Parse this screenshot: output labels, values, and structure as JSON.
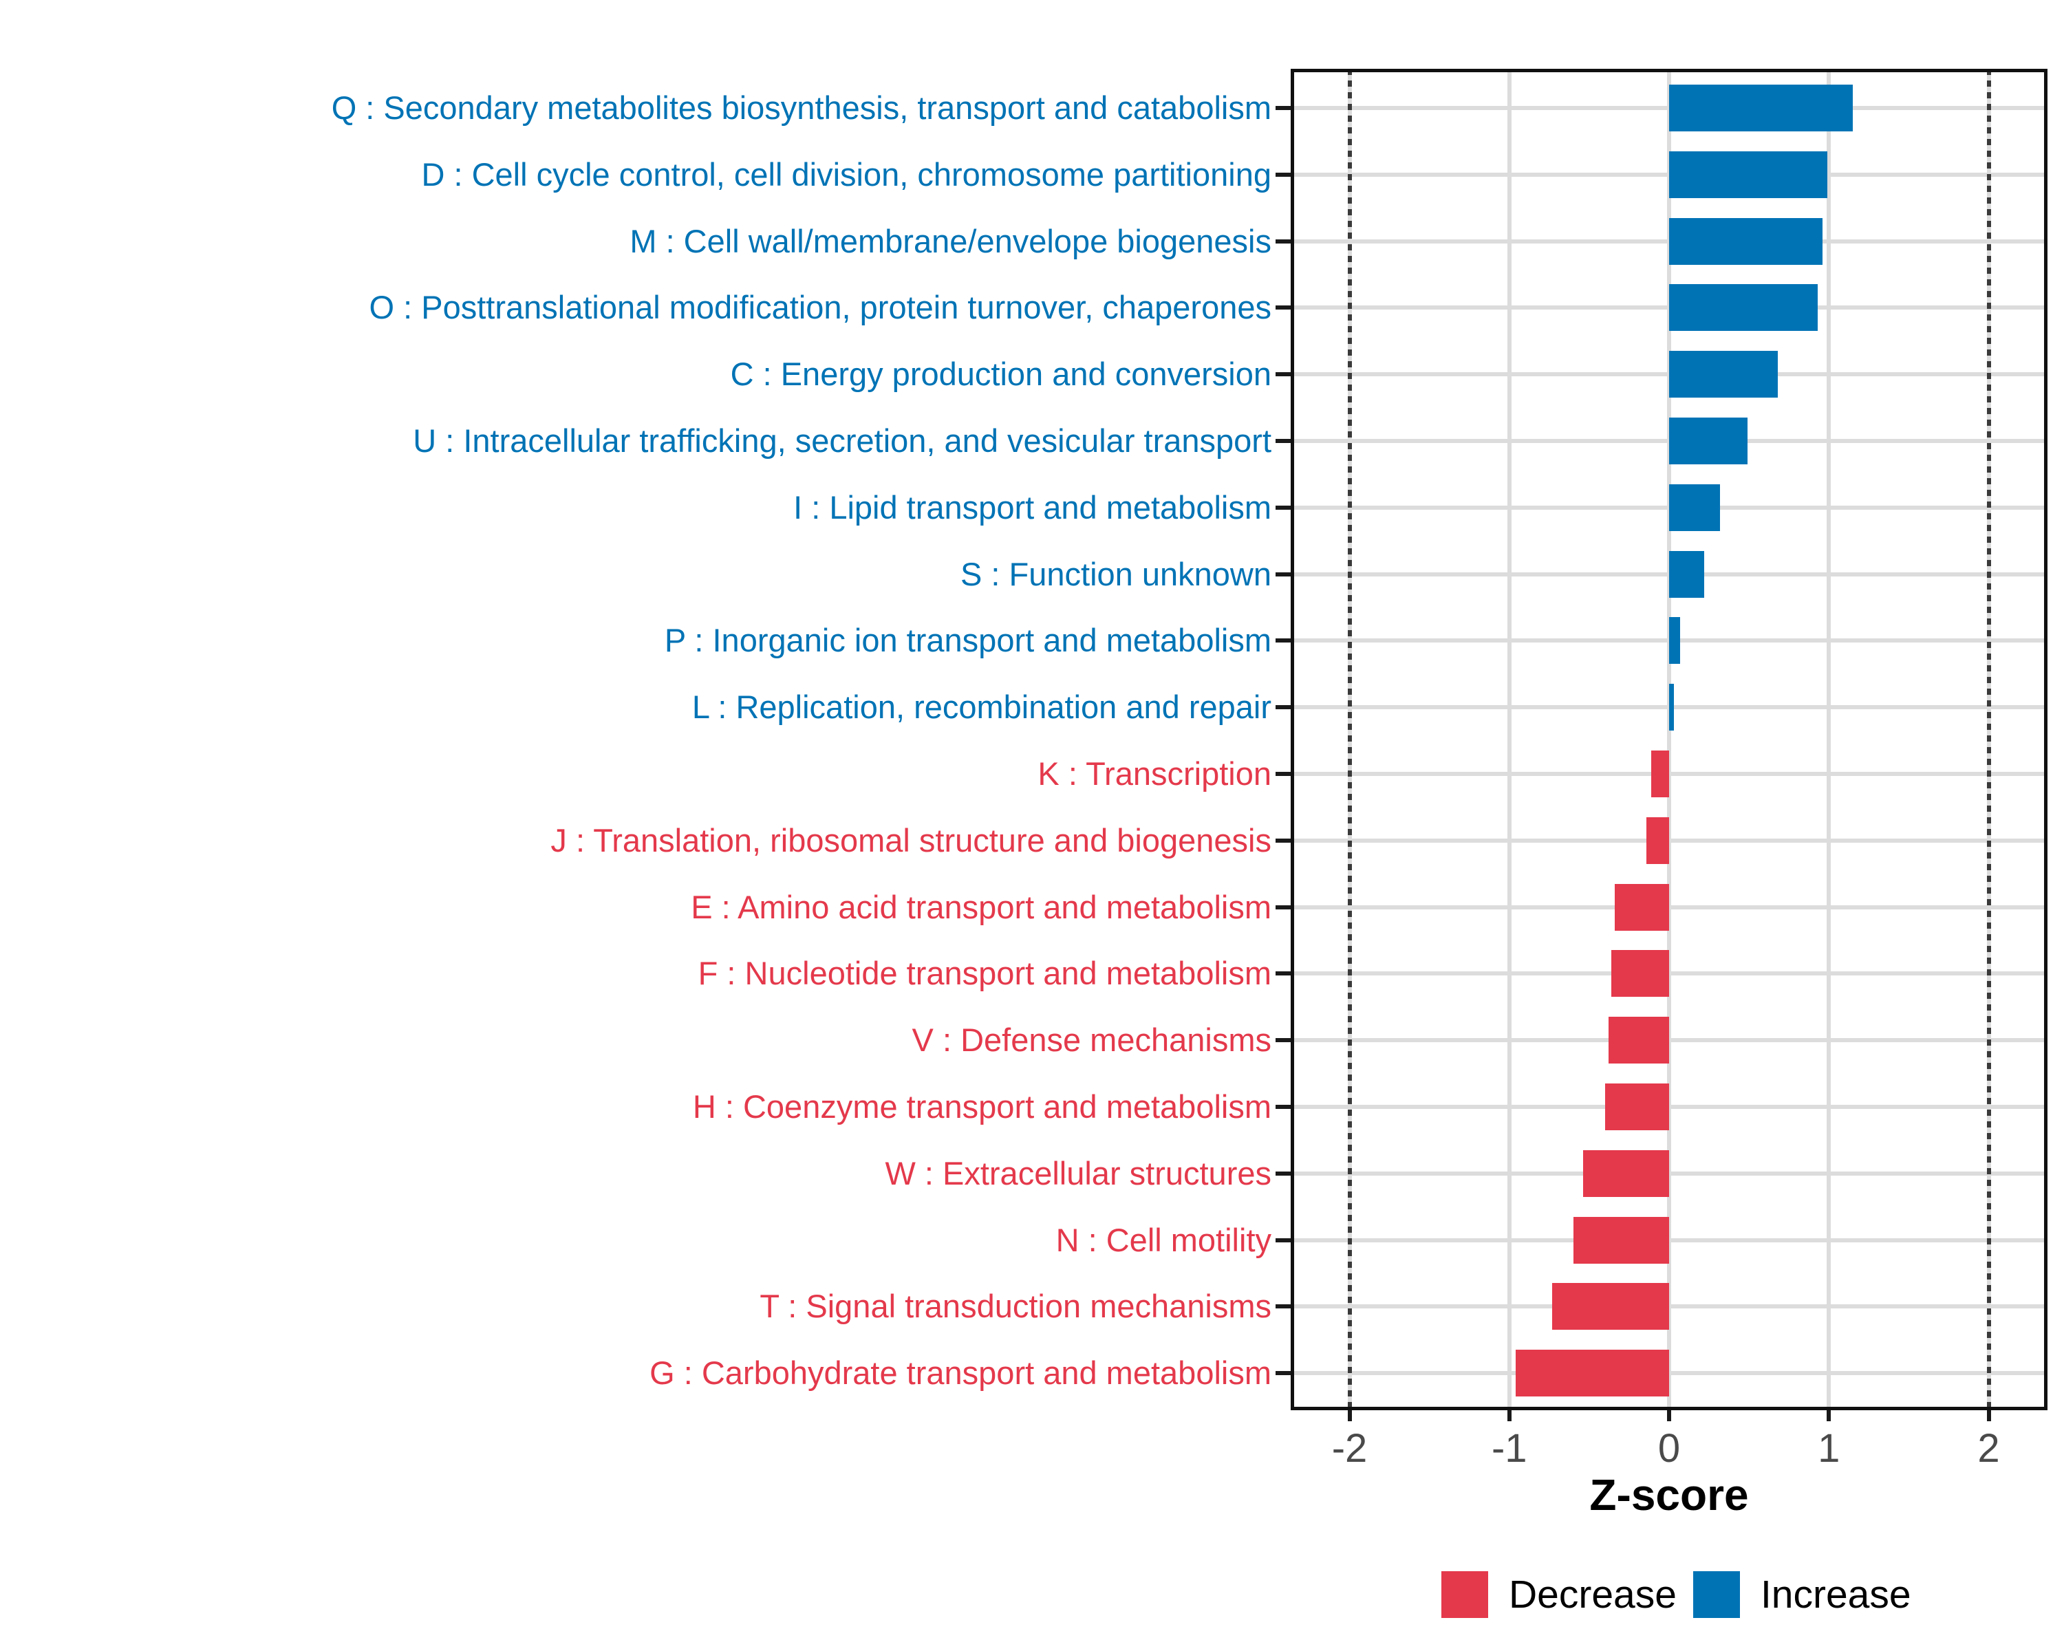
{
  "figure": {
    "background": "#ffffff"
  },
  "colors": {
    "increase": "#0073b5",
    "decrease": "#e4394b",
    "grid": "#dcdcdc",
    "axis_text": "#4a4a4a",
    "axis_line": "#1a1a1a",
    "reference_line": "#3a3a3a",
    "panel_border": "#101010"
  },
  "chart_data": {
    "type": "bar",
    "orientation": "horizontal",
    "title": "",
    "xlabel": "Z-score",
    "ylabel": "",
    "xlim": [
      -2.37,
      2.37
    ],
    "x_ticks": [
      -2,
      -1,
      0,
      1,
      2
    ],
    "x_tick_labels": [
      "-2",
      "-1",
      "0",
      "1",
      "2"
    ],
    "reference_lines": [
      -2,
      2
    ],
    "grid": "major vertical at integer ticks, horizontal at each category center",
    "legend_position": "bottom-right",
    "legend": {
      "entries": [
        {
          "label": "Decrease",
          "color_key": "decrease"
        },
        {
          "label": "Increase",
          "color_key": "increase"
        }
      ]
    },
    "categories": [
      {
        "label": "Q : Secondary metabolites biosynthesis, transport and catabolism",
        "value": 1.15,
        "group": "Increase"
      },
      {
        "label": "D : Cell cycle control, cell division, chromosome partitioning",
        "value": 0.99,
        "group": "Increase"
      },
      {
        "label": "M : Cell wall/membrane/envelope biogenesis",
        "value": 0.96,
        "group": "Increase"
      },
      {
        "label": "O : Posttranslational modification, protein turnover, chaperones",
        "value": 0.93,
        "group": "Increase"
      },
      {
        "label": "C : Energy production and conversion",
        "value": 0.68,
        "group": "Increase"
      },
      {
        "label": "U : Intracellular trafficking, secretion, and vesicular transport",
        "value": 0.49,
        "group": "Increase"
      },
      {
        "label": "I : Lipid transport and metabolism",
        "value": 0.32,
        "group": "Increase"
      },
      {
        "label": "S : Function unknown",
        "value": 0.22,
        "group": "Increase"
      },
      {
        "label": "P : Inorganic ion transport and metabolism",
        "value": 0.07,
        "group": "Increase"
      },
      {
        "label": "L : Replication, recombination and repair",
        "value": 0.03,
        "group": "Increase"
      },
      {
        "label": "K : Transcription",
        "value": -0.11,
        "group": "Decrease"
      },
      {
        "label": "J : Translation, ribosomal structure and biogenesis",
        "value": -0.14,
        "group": "Decrease"
      },
      {
        "label": "E : Amino acid transport and metabolism",
        "value": -0.34,
        "group": "Decrease"
      },
      {
        "label": "F : Nucleotide transport and metabolism",
        "value": -0.36,
        "group": "Decrease"
      },
      {
        "label": "V : Defense mechanisms",
        "value": -0.38,
        "group": "Decrease"
      },
      {
        "label": "H : Coenzyme transport and metabolism",
        "value": -0.4,
        "group": "Decrease"
      },
      {
        "label": "W : Extracellular structures",
        "value": -0.54,
        "group": "Decrease"
      },
      {
        "label": "N : Cell motility",
        "value": -0.6,
        "group": "Decrease"
      },
      {
        "label": "T : Signal transduction mechanisms",
        "value": -0.73,
        "group": "Decrease"
      },
      {
        "label": "G : Carbohydrate transport and metabolism",
        "value": -0.96,
        "group": "Decrease"
      }
    ]
  }
}
